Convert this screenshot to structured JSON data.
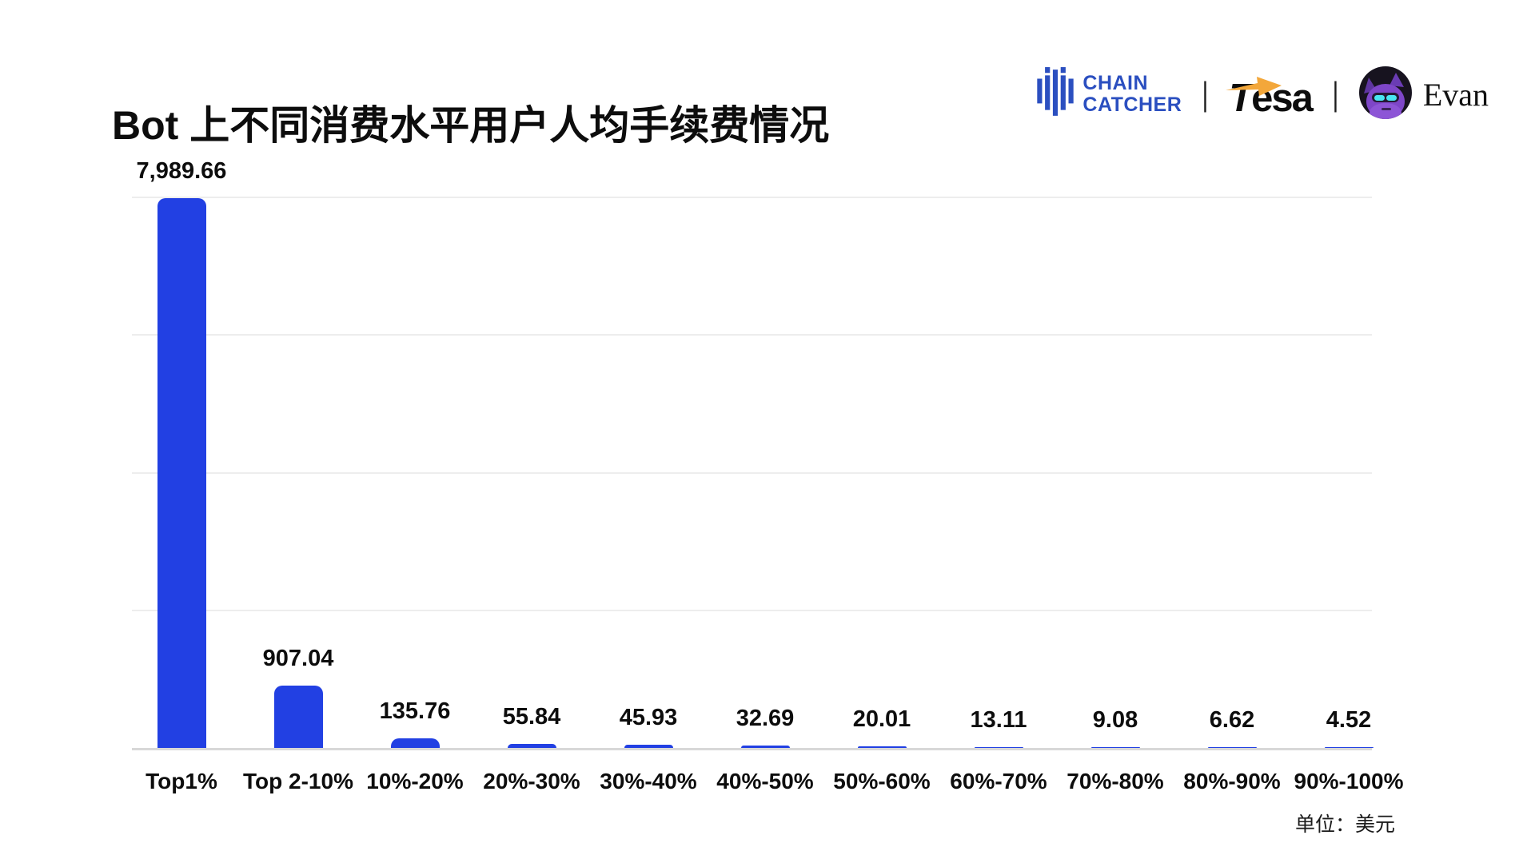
{
  "header": {
    "title": "Bot 上不同消费水平用户人均手续费情况",
    "logos": {
      "chaincatcher": {
        "line1": "CHAIN",
        "line2": "CATCHER",
        "brand_color": "#2b4fc0",
        "icon": "chaincatcher-bars-icon"
      },
      "separator": "|",
      "tesa": {
        "t": "T",
        "rest": "esa",
        "arrow_color": "#f3a73a",
        "icon": "tesa-arrow-icon"
      },
      "evan": {
        "name": "Evan",
        "icon": "evan-avatar"
      }
    }
  },
  "chart_data": {
    "type": "bar",
    "title": "Bot 上不同消费水平用户人均手续费情况",
    "categories": [
      "Top1%",
      "Top 2-10%",
      "10%-20%",
      "20%-30%",
      "30%-40%",
      "40%-50%",
      "50%-60%",
      "60%-70%",
      "70%-80%",
      "80%-90%",
      "90%-100%"
    ],
    "values": [
      7989.66,
      907.04,
      135.76,
      55.84,
      45.93,
      32.69,
      20.01,
      13.11,
      9.08,
      6.62,
      4.52
    ],
    "value_labels": [
      "7,989.66",
      "907.04",
      "135.76",
      "55.84",
      "45.93",
      "32.69",
      "20.01",
      "13.11",
      "9.08",
      "6.62",
      "4.52"
    ],
    "xlabel": "",
    "ylabel": "",
    "ylim": [
      0,
      8000
    ],
    "gridline_values": [
      0,
      2000,
      4000,
      6000,
      8000
    ],
    "grid": "horizontal gridlines, no y tick labels",
    "legend": "none",
    "bar_color": "#2240e3",
    "unit_note": "单位：美元"
  }
}
